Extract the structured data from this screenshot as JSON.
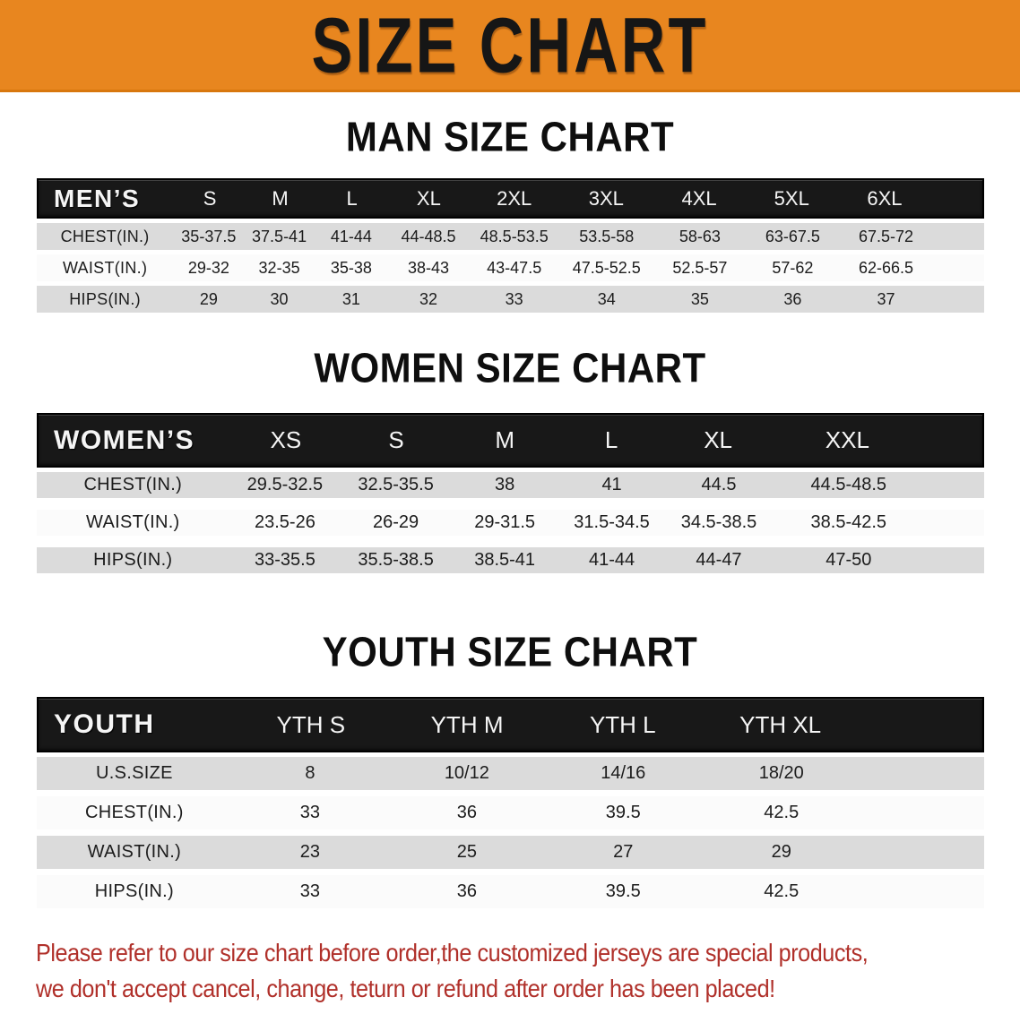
{
  "banner": {
    "title": "SIZE CHART"
  },
  "colors": {
    "banner_bg": "#E8861F",
    "banner_border": "#D8770E",
    "table_header_bg": "#181818",
    "table_header_text": "#F5F5F5",
    "row_alt_bg": "#DBDBDB",
    "row_light_bg": "#FBFBFB",
    "disclaimer_text": "#B0302A"
  },
  "sections": {
    "mens": {
      "title": "MAN SIZE CHART",
      "header": {
        "label": "MEN’S",
        "sizes": [
          "S",
          "M",
          "L",
          "XL",
          "2XL",
          "3XL",
          "4XL",
          "5XL",
          "6XL"
        ]
      },
      "rows": [
        {
          "label": "CHEST(IN.)",
          "values": [
            "35-37.5",
            "37.5-41",
            "41-44",
            "44-48.5",
            "48.5-53.5",
            "53.5-58",
            "58-63",
            "63-67.5",
            "67.5-72"
          ]
        },
        {
          "label": "WAIST(IN.)",
          "values": [
            "29-32",
            "32-35",
            "35-38",
            "38-43",
            "43-47.5",
            "47.5-52.5",
            "52.5-57",
            "57-62",
            "62-66.5"
          ]
        },
        {
          "label": "HIPS(IN.)",
          "values": [
            "29",
            "30",
            "31",
            "32",
            "33",
            "34",
            "35",
            "36",
            "37"
          ]
        }
      ]
    },
    "womens": {
      "title": "WOMEN SIZE CHART",
      "header": {
        "label": "WOMEN’S",
        "sizes": [
          "XS",
          "S",
          "M",
          "L",
          "XL",
          "XXL"
        ]
      },
      "rows": [
        {
          "label": "CHEST(IN.)",
          "values": [
            "29.5-32.5",
            "32.5-35.5",
            "38",
            "41",
            "44.5",
            "44.5-48.5"
          ]
        },
        {
          "label": "WAIST(IN.)",
          "values": [
            "23.5-26",
            "26-29",
            "29-31.5",
            "31.5-34.5",
            "34.5-38.5",
            "38.5-42.5"
          ]
        },
        {
          "label": "HIPS(IN.)",
          "values": [
            "33-35.5",
            "35.5-38.5",
            "38.5-41",
            "41-44",
            "44-47",
            "47-50"
          ]
        }
      ]
    },
    "youth": {
      "title": "YOUTH SIZE CHART",
      "header": {
        "label": "YOUTH",
        "sizes": [
          "YTH S",
          "YTH M",
          "YTH L",
          "YTH XL"
        ]
      },
      "rows": [
        {
          "label": "U.S.SIZE",
          "values": [
            "8",
            "10/12",
            "14/16",
            "18/20"
          ]
        },
        {
          "label": "CHEST(IN.)",
          "values": [
            "33",
            "36",
            "39.5",
            "42.5"
          ]
        },
        {
          "label": "WAIST(IN.)",
          "values": [
            "23",
            "25",
            "27",
            "29"
          ]
        },
        {
          "label": "HIPS(IN.)",
          "values": [
            "33",
            "36",
            "39.5",
            "42.5"
          ]
        }
      ]
    }
  },
  "disclaimer": {
    "lines": [
      "Please refer to our size chart before order,the customized jerseys are special products,",
      "we don't accept cancel, change, teturn or refund after order has been placed!"
    ]
  }
}
